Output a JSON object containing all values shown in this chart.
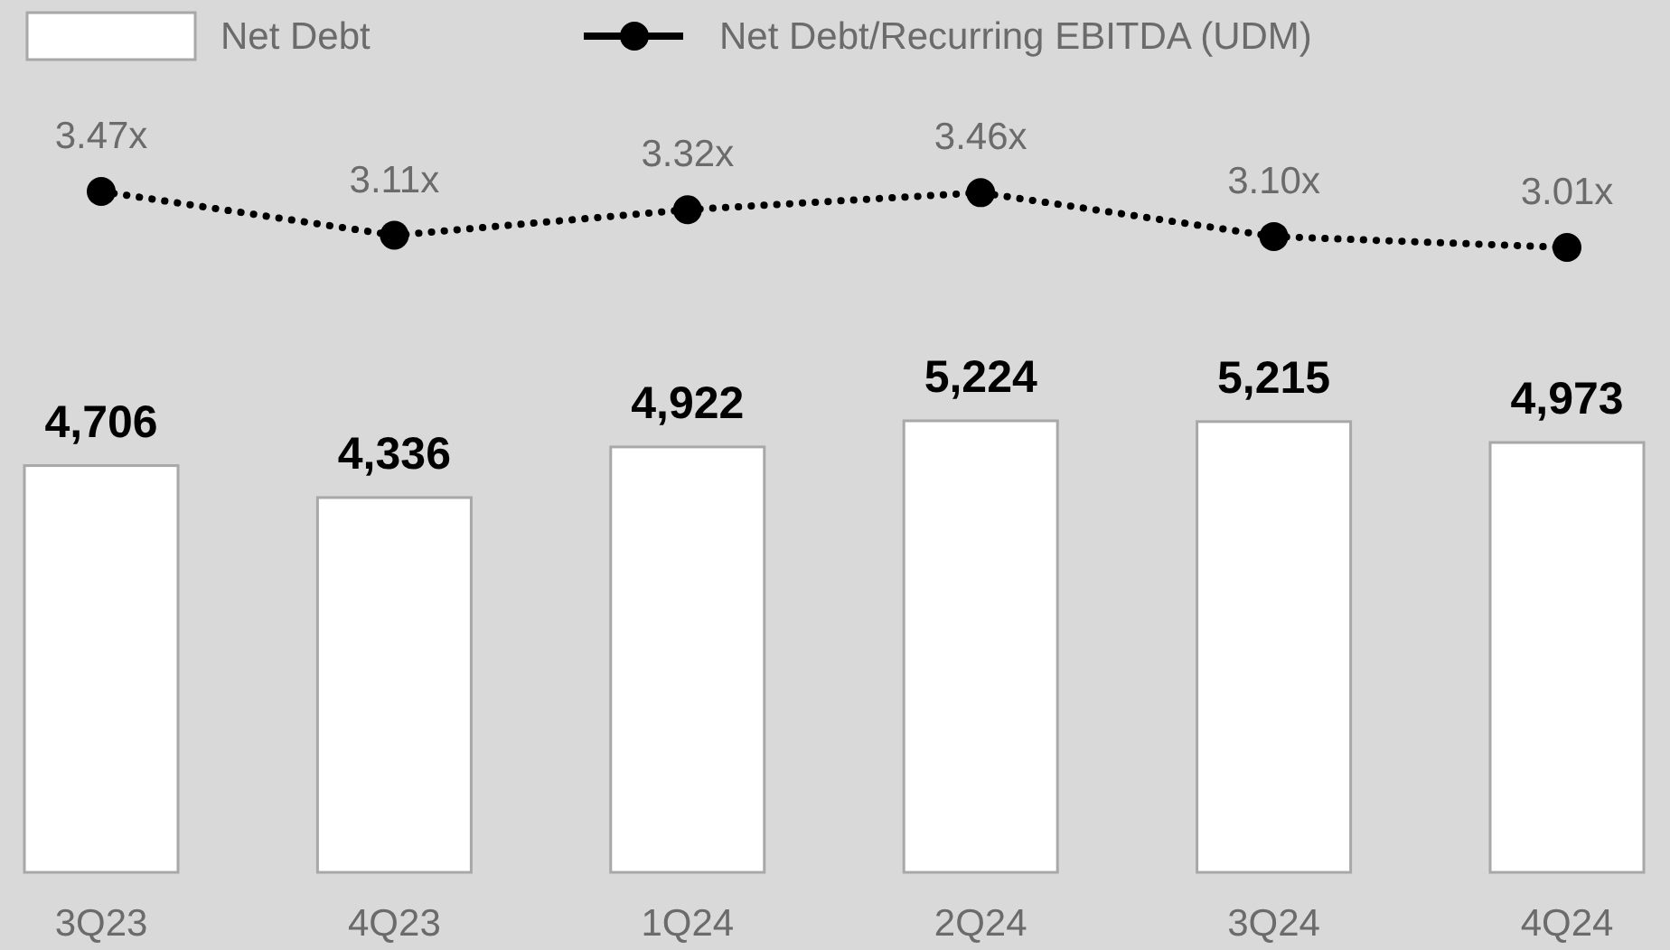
{
  "chart_data": [
    {
      "type": "bar",
      "categories": [
        "3Q23",
        "4Q23",
        "1Q24",
        "2Q24",
        "3Q24",
        "4Q24"
      ],
      "series": [
        {
          "name": "Net Debt",
          "color": "#ffffff",
          "values": [
            4706,
            4336,
            4922,
            5224,
            5215,
            4973
          ],
          "value_labels": [
            "4,706",
            "4,336",
            "4,922",
            "5,224",
            "5,215",
            "4,973"
          ]
        }
      ],
      "tick_labels": "x",
      "legend": "top left"
    },
    {
      "type": "line",
      "categories": [
        null,
        null,
        null,
        null,
        null,
        null
      ],
      "series": [
        {
          "name": "Net Debt/Recurring EBITDA (UDM)",
          "color": "#000000",
          "values": [
            3.47,
            3.11,
            3.32,
            3.46,
            3.1,
            3.01
          ],
          "value_labels": [
            "3.47x",
            "3.11x",
            "3.32x",
            "3.46x",
            "3.10x",
            "3.01x"
          ]
        }
      ],
      "marker": "circle",
      "line_style": "dotted",
      "legend": "top"
    }
  ]
}
